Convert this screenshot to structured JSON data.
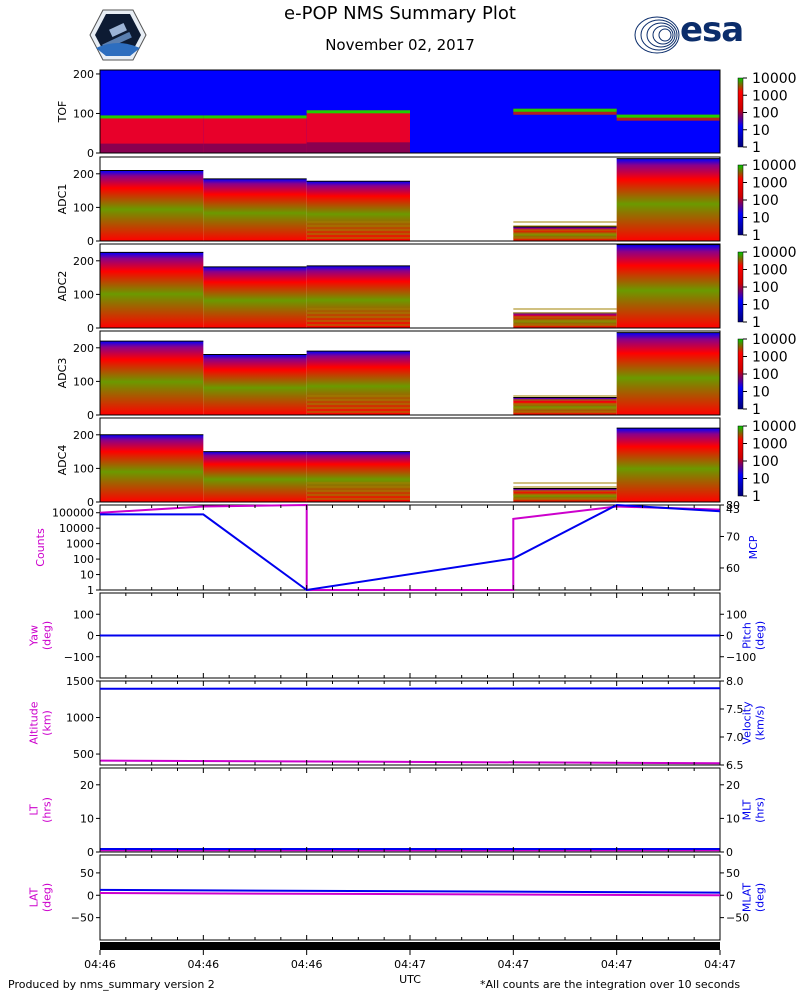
{
  "header": {
    "title": "e-POP NMS Summary Plot",
    "date": "November 02, 2017",
    "logo_right": "esa"
  },
  "footer": {
    "left": "Produced by nms_summary version 2",
    "right": "*All counts are the integration over 10 seconds"
  },
  "colors": {
    "magenta": "#cc00cc",
    "blue": "#0000ee",
    "spec_blue": "#0000ff",
    "green": "#22cc00",
    "red": "#ff0000",
    "olive": "#6b9a00"
  },
  "chart_data": [
    {
      "type": "heatmap",
      "ylabel": "TOF",
      "yticks": [
        "200",
        "100",
        "0"
      ],
      "ylim": [
        0,
        210
      ],
      "colorbar": {
        "labels": [
          "10000",
          "1000",
          "100",
          "10",
          "1"
        ],
        "scale": "log"
      },
      "blocks": [
        {
          "segment": 1,
          "note": "red band",
          "max": 95
        },
        {
          "segment": 2,
          "note": "red band",
          "max": 95
        },
        {
          "segment": 3,
          "note": "red band",
          "max": 108
        },
        {
          "segment": 4,
          "note": "empty",
          "max": 0
        },
        {
          "segment": 5,
          "note": "band",
          "max": 112
        },
        {
          "segment": 6,
          "note": "band",
          "max": 97
        }
      ]
    },
    {
      "type": "heatmap",
      "ylabel": "ADC1",
      "yticks": [
        "200",
        "100",
        "0"
      ],
      "ylim": [
        0,
        250
      ],
      "colorbar": {
        "labels": [
          "10000",
          "1000",
          "100",
          "10",
          "1"
        ],
        "scale": "log"
      },
      "maxima": [
        210,
        185,
        178,
        0,
        42,
        245
      ]
    },
    {
      "type": "heatmap",
      "ylabel": "ADC2",
      "yticks": [
        "200",
        "100",
        "0"
      ],
      "ylim": [
        0,
        250
      ],
      "colorbar": {
        "labels": [
          "10000",
          "1000",
          "100",
          "10",
          "1"
        ],
        "scale": "log"
      },
      "maxima": [
        225,
        182,
        185,
        0,
        45,
        248
      ]
    },
    {
      "type": "heatmap",
      "ylabel": "ADC3",
      "yticks": [
        "200",
        "100",
        "0"
      ],
      "ylim": [
        0,
        250
      ],
      "colorbar": {
        "labels": [
          "10000",
          "1000",
          "100",
          "10",
          "1"
        ],
        "scale": "log"
      },
      "maxima": [
        220,
        180,
        190,
        0,
        52,
        245
      ]
    },
    {
      "type": "heatmap",
      "ylabel": "ADC4",
      "yticks": [
        "200",
        "100",
        "0"
      ],
      "ylim": [
        0,
        250
      ],
      "colorbar": {
        "labels": [
          "10000",
          "1000",
          "100",
          "10",
          "1"
        ],
        "scale": "log"
      },
      "maxima": [
        200,
        150,
        150,
        0,
        40,
        220
      ]
    },
    {
      "type": "line",
      "ylabel_left": "Counts",
      "ylabel_right": "MCP",
      "yticks_left": [
        "100000",
        "10000",
        "1000",
        "100",
        "10",
        "1"
      ],
      "yticks_right": [
        "80",
        "70",
        "60"
      ],
      "right_extra": "43",
      "series": [
        {
          "side": "left",
          "color": "magenta",
          "x": [
            0,
            1,
            2,
            2,
            4,
            4,
            5,
            6
          ],
          "y": [
            5.0,
            5.4,
            5.5,
            0,
            0,
            4.6,
            5.4,
            5.2
          ]
        },
        {
          "side": "right",
          "color": "blue",
          "x": [
            0,
            1,
            2,
            4,
            5,
            6
          ],
          "y": [
            77,
            77,
            53,
            63,
            80,
            78
          ]
        }
      ]
    },
    {
      "type": "line",
      "ylabel_left": "Yaw\n(deg)",
      "ylabel_right": "Pitch\n(deg)",
      "yticks_left": [
        "100",
        "0",
        "−100"
      ],
      "yticks_right": [
        "100",
        "0",
        "−100"
      ],
      "series": [
        {
          "side": "left",
          "color": "magenta",
          "x": [
            0,
            6
          ],
          "y": [
            0,
            0
          ]
        },
        {
          "side": "right",
          "color": "blue",
          "x": [
            0,
            6
          ],
          "y": [
            0,
            0
          ]
        }
      ]
    },
    {
      "type": "line",
      "ylabel_left": "Altitude\n(km)",
      "ylabel_right": "Velocity\n(km/s)",
      "yticks_left": [
        "1500",
        "1000",
        "500"
      ],
      "yticks_right": [
        "8.0",
        "7.5",
        "7.0",
        "6.5"
      ],
      "series": [
        {
          "side": "left",
          "color": "magenta",
          "x": [
            0,
            6
          ],
          "y": [
            410,
            375
          ]
        },
        {
          "side": "right",
          "color": "blue",
          "x": [
            0,
            6
          ],
          "y": [
            7.86,
            7.87
          ]
        }
      ]
    },
    {
      "type": "line",
      "ylabel_left": "LT\n(hrs)",
      "ylabel_right": "MLT\n(hrs)",
      "yticks_left": [
        "20",
        "10",
        "0"
      ],
      "yticks_right": [
        "20",
        "10",
        "0"
      ],
      "series": [
        {
          "side": "left",
          "color": "magenta",
          "x": [
            0,
            6
          ],
          "y": [
            0.5,
            0.5
          ]
        },
        {
          "side": "right",
          "color": "blue",
          "x": [
            0,
            6
          ],
          "y": [
            0.9,
            0.9
          ]
        }
      ]
    },
    {
      "type": "line",
      "ylabel_left": "LAT\n(deg)",
      "ylabel_right": "MLAT\n(deg)",
      "yticks_left": [
        "50",
        "0",
        "−50"
      ],
      "yticks_right": [
        "50",
        "0",
        "−50"
      ],
      "series": [
        {
          "side": "left",
          "color": "magenta",
          "x": [
            0,
            6
          ],
          "y": [
            5,
            0
          ]
        },
        {
          "side": "right",
          "color": "blue",
          "x": [
            0,
            6
          ],
          "y": [
            12,
            6
          ]
        }
      ]
    }
  ],
  "x_axis": {
    "label": "UTC",
    "ticks": [
      "04:46",
      "04:46",
      "04:46",
      "04:47",
      "04:47",
      "04:47",
      "04:47"
    ]
  }
}
